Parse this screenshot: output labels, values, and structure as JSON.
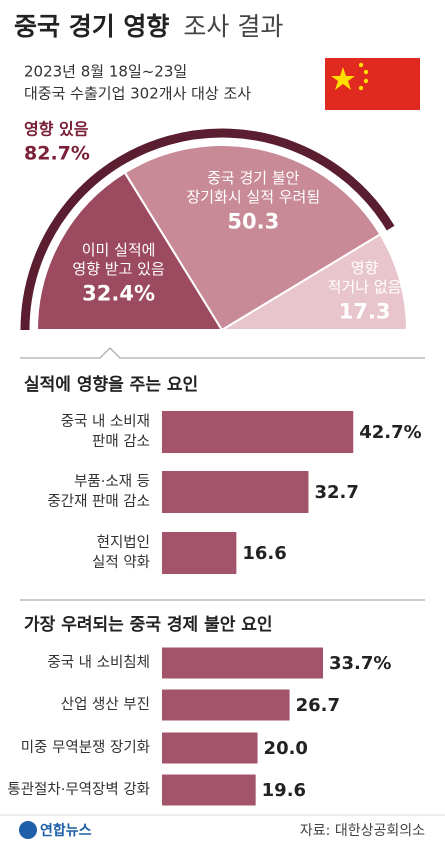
{
  "header": {
    "title_bold": "중국 경기 영향",
    "title_light": "조사 결과",
    "subtitle": [
      "2023년 8월 18일~23일",
      "대중국 수출기업 302개사 대상 조사"
    ]
  },
  "chart_data": [
    {
      "type": "pie",
      "shape": "half",
      "categories": [
        [
          "이미 실적에",
          "영향 받고 있음"
        ],
        [
          "중국 경기 불안",
          "장기화시 실적 우려됨"
        ],
        [
          "영향",
          "적거나 없음"
        ]
      ],
      "values": [
        32.4,
        50.3,
        17.3
      ],
      "value_labels": [
        "32.4%",
        "50.3",
        "17.3"
      ],
      "colors": [
        "#9c4a60",
        "#c98a98",
        "#e8c5cd"
      ],
      "highlight": {
        "label": "영향 있음",
        "value": 82.7,
        "value_label": "82.7%",
        "color": "#5a1e30"
      }
    },
    {
      "type": "bar",
      "orientation": "horizontal",
      "title": "실적에 영향을 주는 요인",
      "categories": [
        [
          "중국 내 소비재",
          "판매 감소"
        ],
        [
          "부품·소재 등",
          "중간재 판매 감소"
        ],
        [
          "현지법인",
          "실적 약화"
        ]
      ],
      "values": [
        42.7,
        32.7,
        16.6
      ],
      "value_labels": [
        "42.7%",
        "32.7",
        "16.6"
      ],
      "color": "#a4546a",
      "xlim": [
        0,
        48
      ]
    },
    {
      "type": "bar",
      "orientation": "horizontal",
      "title": "가장 우려되는 중국 경제 불안 요인",
      "categories": [
        [
          "중국 내 소비침체"
        ],
        [
          "산업 생산 부진"
        ],
        [
          "미중 무역분쟁 장기화"
        ],
        [
          "통관절차·무역장벽 강화"
        ]
      ],
      "values": [
        33.7,
        26.7,
        20.0,
        19.6
      ],
      "value_labels": [
        "33.7%",
        "26.7",
        "20.0",
        "19.6"
      ],
      "color": "#a4546a",
      "xlim": [
        0,
        45
      ]
    }
  ],
  "footer": {
    "logo": "연합뉴스",
    "source": "자료: 대한상공회의소"
  }
}
